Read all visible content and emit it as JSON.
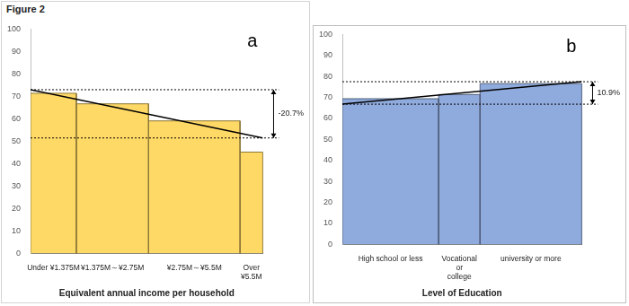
{
  "title": "Figure 2",
  "chart_data": [
    {
      "type": "bar",
      "panel_label": "a",
      "xlabel": "Equivalent annual income per household",
      "categories": [
        "Under ¥1.375M",
        "¥1.375M～¥2.75M",
        "¥2.75M～¥5.5M",
        "Over ¥5.5M"
      ],
      "values": [
        71.4,
        66.7,
        59.1,
        45.2
      ],
      "widths": [
        19.7,
        31.1,
        39.4,
        9.8
      ],
      "color": "#ffd966",
      "ylim": [
        0,
        100
      ],
      "yticks": [
        0,
        10,
        20,
        30,
        40,
        50,
        60,
        70,
        80,
        90,
        100
      ],
      "grid": false,
      "trend_line": {
        "start": 73,
        "end": 51.5,
        "label": "-20.7%"
      }
    },
    {
      "type": "bar",
      "panel_label": "b",
      "xlabel": "Level of Education",
      "categories": [
        "High school or less",
        "Vocational or college",
        "university or more"
      ],
      "values": [
        69.4,
        71.4,
        76.6
      ],
      "widths": [
        40.2,
        17.3,
        42.5
      ],
      "color": "#8faadc",
      "ylim": [
        0,
        100
      ],
      "yticks": [
        0,
        10,
        20,
        30,
        40,
        50,
        60,
        70,
        80,
        90,
        100
      ],
      "grid": false,
      "trend_line": {
        "start": 66.8,
        "end": 77.5,
        "label": "10.9%"
      }
    }
  ]
}
